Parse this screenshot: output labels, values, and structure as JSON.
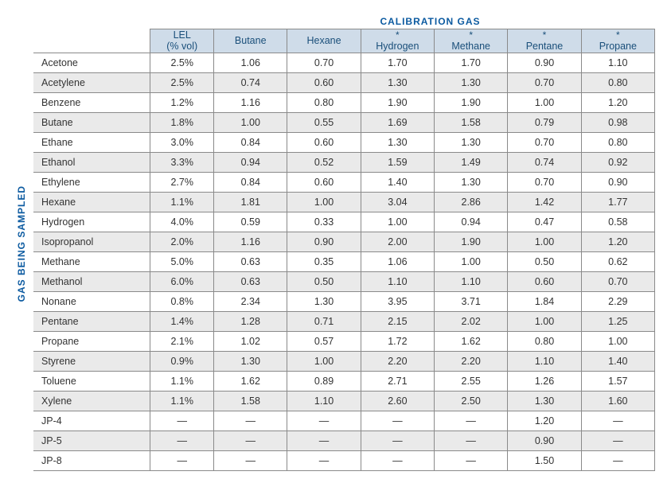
{
  "title_top": "CALIBRATION GAS",
  "title_side": "GAS BEING SAMPLED",
  "colors": {
    "accent": "#0b5aa0",
    "header_bg": "#cfdce9",
    "header_text": "#1a4f7a",
    "row_even": "#eaeaea",
    "row_odd": "#ffffff",
    "border": "#8a8a8a"
  },
  "fontsize_body": 12.5,
  "fontsize_titles": 12,
  "columns": [
    {
      "key": "lel",
      "label": "LEL\n(% vol)",
      "star": false
    },
    {
      "key": "butane",
      "label": "Butane",
      "star": false
    },
    {
      "key": "hexane",
      "label": "Hexane",
      "star": false
    },
    {
      "key": "hydrogen",
      "label": "Hydrogen",
      "star": true
    },
    {
      "key": "methane",
      "label": "Methane",
      "star": true
    },
    {
      "key": "pentane",
      "label": "Pentane",
      "star": true
    },
    {
      "key": "propane",
      "label": "Propane",
      "star": true
    }
  ],
  "rows": [
    {
      "name": "Acetone",
      "v": [
        "2.5%",
        "1.06",
        "0.70",
        "1.70",
        "1.70",
        "0.90",
        "1.10"
      ]
    },
    {
      "name": "Acetylene",
      "v": [
        "2.5%",
        "0.74",
        "0.60",
        "1.30",
        "1.30",
        "0.70",
        "0.80"
      ]
    },
    {
      "name": "Benzene",
      "v": [
        "1.2%",
        "1.16",
        "0.80",
        "1.90",
        "1.90",
        "1.00",
        "1.20"
      ]
    },
    {
      "name": "Butane",
      "v": [
        "1.8%",
        "1.00",
        "0.55",
        "1.69",
        "1.58",
        "0.79",
        "0.98"
      ]
    },
    {
      "name": "Ethane",
      "v": [
        "3.0%",
        "0.84",
        "0.60",
        "1.30",
        "1.30",
        "0.70",
        "0.80"
      ]
    },
    {
      "name": "Ethanol",
      "v": [
        "3.3%",
        "0.94",
        "0.52",
        "1.59",
        "1.49",
        "0.74",
        "0.92"
      ]
    },
    {
      "name": "Ethylene",
      "v": [
        "2.7%",
        "0.84",
        "0.60",
        "1.40",
        "1.30",
        "0.70",
        "0.90"
      ]
    },
    {
      "name": "Hexane",
      "v": [
        "1.1%",
        "1.81",
        "1.00",
        "3.04",
        "2.86",
        "1.42",
        "1.77"
      ]
    },
    {
      "name": "Hydrogen",
      "v": [
        "4.0%",
        "0.59",
        "0.33",
        "1.00",
        "0.94",
        "0.47",
        "0.58"
      ]
    },
    {
      "name": "Isopropanol",
      "v": [
        "2.0%",
        "1.16",
        "0.90",
        "2.00",
        "1.90",
        "1.00",
        "1.20"
      ]
    },
    {
      "name": "Methane",
      "v": [
        "5.0%",
        "0.63",
        "0.35",
        "1.06",
        "1.00",
        "0.50",
        "0.62"
      ]
    },
    {
      "name": "Methanol",
      "v": [
        "6.0%",
        "0.63",
        "0.50",
        "1.10",
        "1.10",
        "0.60",
        "0.70"
      ]
    },
    {
      "name": "Nonane",
      "v": [
        "0.8%",
        "2.34",
        "1.30",
        "3.95",
        "3.71",
        "1.84",
        "2.29"
      ]
    },
    {
      "name": "Pentane",
      "v": [
        "1.4%",
        "1.28",
        "0.71",
        "2.15",
        "2.02",
        "1.00",
        "1.25"
      ]
    },
    {
      "name": "Propane",
      "v": [
        "2.1%",
        "1.02",
        "0.57",
        "1.72",
        "1.62",
        "0.80",
        "1.00"
      ]
    },
    {
      "name": "Styrene",
      "v": [
        "0.9%",
        "1.30",
        "1.00",
        "2.20",
        "2.20",
        "1.10",
        "1.40"
      ]
    },
    {
      "name": "Toluene",
      "v": [
        "1.1%",
        "1.62",
        "0.89",
        "2.71",
        "2.55",
        "1.26",
        "1.57"
      ]
    },
    {
      "name": "Xylene",
      "v": [
        "1.1%",
        "1.58",
        "1.10",
        "2.60",
        "2.50",
        "1.30",
        "1.60"
      ]
    },
    {
      "name": "JP-4",
      "v": [
        "—",
        "—",
        "—",
        "—",
        "—",
        "1.20",
        "—"
      ]
    },
    {
      "name": "JP-5",
      "v": [
        "—",
        "—",
        "—",
        "—",
        "—",
        "0.90",
        "—"
      ]
    },
    {
      "name": "JP-8",
      "v": [
        "—",
        "—",
        "—",
        "—",
        "—",
        "1.50",
        "—"
      ]
    }
  ]
}
